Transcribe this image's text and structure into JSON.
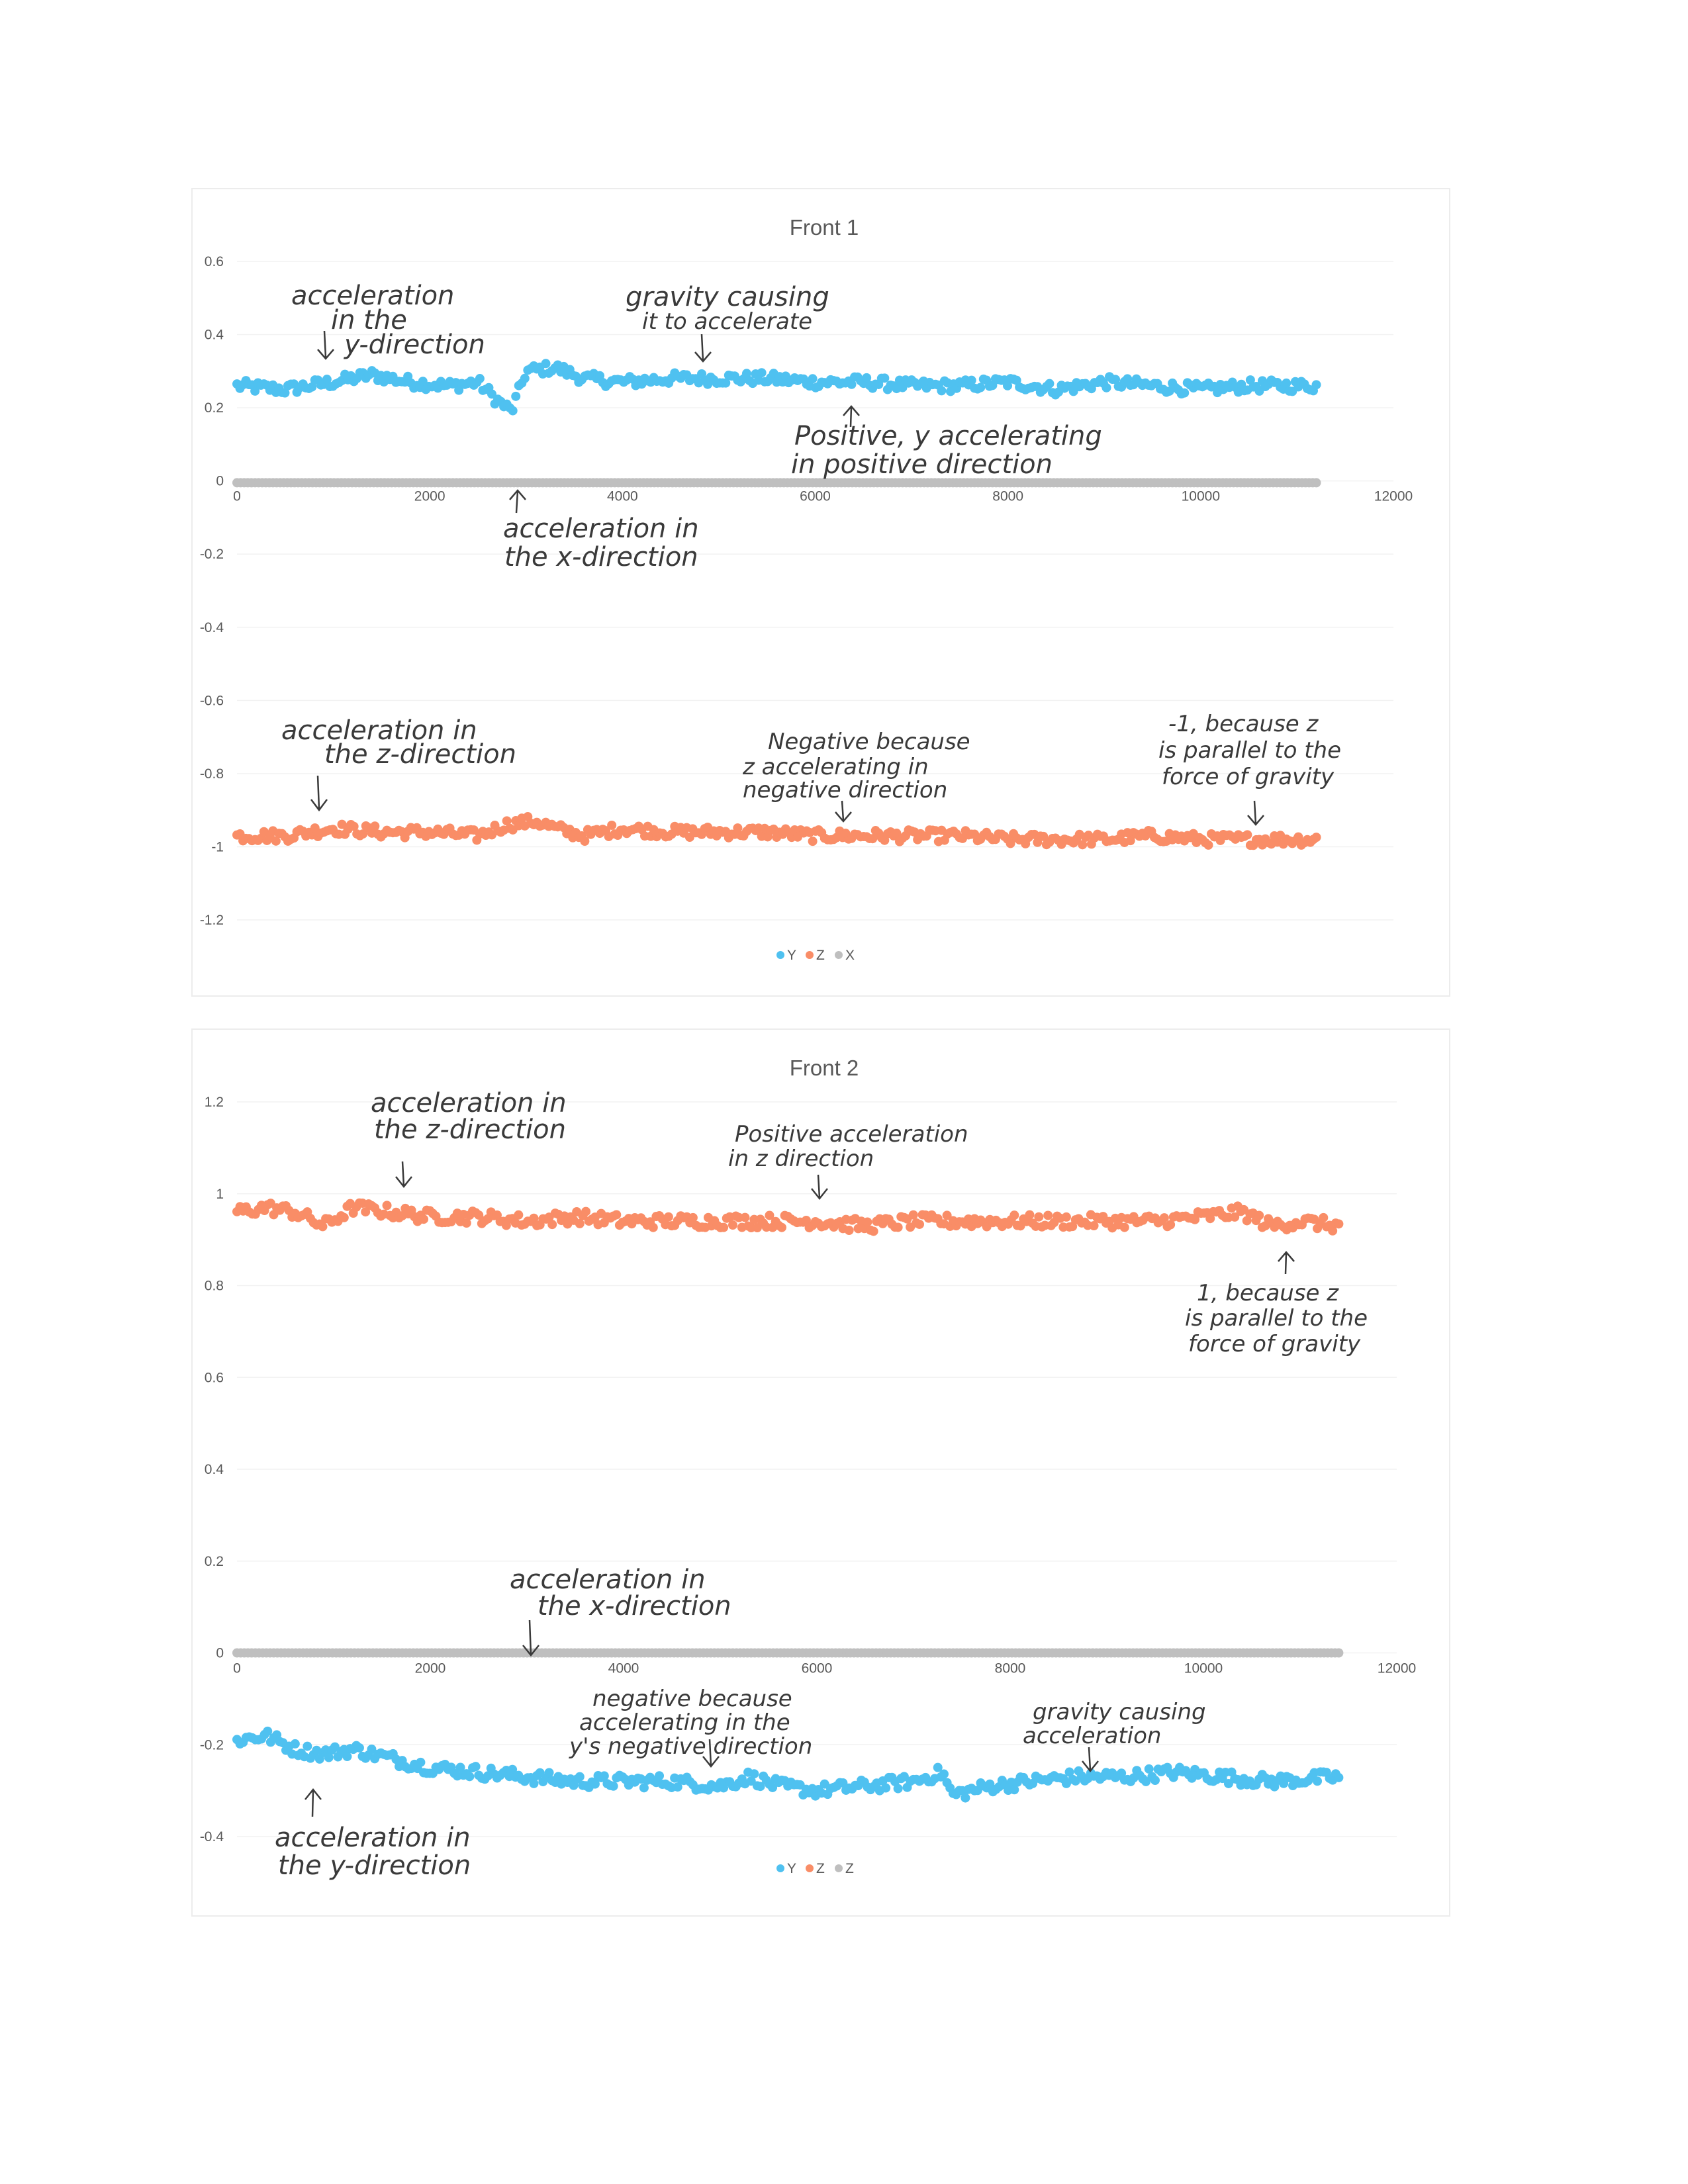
{
  "colors": {
    "Y": "#4fc1f0",
    "Z": "#f98d67",
    "X": "#bfbfbf"
  },
  "chart_data": [
    {
      "type": "scatter",
      "title": "Front 1",
      "xlim": [
        0,
        12000
      ],
      "ylim": [
        -1.2,
        0.6
      ],
      "x_ticks": [
        "0",
        "2000",
        "4000",
        "6000",
        "8000",
        "10000",
        "12000"
      ],
      "y_ticks": [
        "-1.2",
        "-1",
        "-0.8",
        "-0.6",
        "-0.4",
        "-0.2",
        "0",
        "0.2",
        "0.4",
        "0.6"
      ],
      "legend_position": "bottom",
      "series": [
        {
          "name": "Y",
          "color_key": "Y",
          "x_max": 11200,
          "points": [
            [
              0,
              0.26
            ],
            [
              500,
              0.25
            ],
            [
              1000,
              0.27
            ],
            [
              1400,
              0.29
            ],
            [
              1800,
              0.27
            ],
            [
              2200,
              0.26
            ],
            [
              2500,
              0.27
            ],
            [
              2700,
              0.22
            ],
            [
              2850,
              0.19
            ],
            [
              3000,
              0.3
            ],
            [
              3300,
              0.31
            ],
            [
              3600,
              0.28
            ],
            [
              4000,
              0.27
            ],
            [
              4500,
              0.28
            ],
            [
              5000,
              0.28
            ],
            [
              5500,
              0.28
            ],
            [
              6000,
              0.27
            ],
            [
              6500,
              0.27
            ],
            [
              7000,
              0.26
            ],
            [
              7500,
              0.26
            ],
            [
              8000,
              0.27
            ],
            [
              8500,
              0.25
            ],
            [
              9000,
              0.27
            ],
            [
              9500,
              0.26
            ],
            [
              10000,
              0.25
            ],
            [
              10500,
              0.26
            ],
            [
              11200,
              0.26
            ]
          ]
        },
        {
          "name": "Z",
          "color_key": "Z",
          "x_max": 11200,
          "points": [
            [
              0,
              -0.97
            ],
            [
              500,
              -0.97
            ],
            [
              1000,
              -0.95
            ],
            [
              1500,
              -0.96
            ],
            [
              2000,
              -0.96
            ],
            [
              2500,
              -0.97
            ],
            [
              2800,
              -0.94
            ],
            [
              3100,
              -0.93
            ],
            [
              3300,
              -0.95
            ],
            [
              3600,
              -0.97
            ],
            [
              4000,
              -0.95
            ],
            [
              4500,
              -0.96
            ],
            [
              5000,
              -0.96
            ],
            [
              5500,
              -0.96
            ],
            [
              6000,
              -0.97
            ],
            [
              6500,
              -0.97
            ],
            [
              7000,
              -0.97
            ],
            [
              7500,
              -0.97
            ],
            [
              8000,
              -0.98
            ],
            [
              8500,
              -0.98
            ],
            [
              9000,
              -0.98
            ],
            [
              9500,
              -0.97
            ],
            [
              10000,
              -0.98
            ],
            [
              10500,
              -0.98
            ],
            [
              11200,
              -0.98
            ]
          ]
        },
        {
          "name": "X",
          "color_key": "X",
          "x_max": 11200,
          "points": [
            [
              0,
              -0.005
            ],
            [
              11200,
              -0.005
            ]
          ]
        }
      ]
    },
    {
      "type": "scatter",
      "title": "Front 2",
      "xlim": [
        0,
        12000
      ],
      "ylim": [
        -0.4,
        1.2
      ],
      "x_ticks": [
        "0",
        "2000",
        "4000",
        "6000",
        "8000",
        "10000",
        "12000"
      ],
      "y_ticks": [
        "-0.4",
        "-0.2",
        "0",
        "0.2",
        "0.4",
        "0.6",
        "0.8",
        "1",
        "1.2"
      ],
      "legend_position": "bottom",
      "series": [
        {
          "name": "Y",
          "color_key": "Y",
          "x_max": 11400,
          "points": [
            [
              0,
              -0.19
            ],
            [
              300,
              -0.18
            ],
            [
              600,
              -0.21
            ],
            [
              900,
              -0.22
            ],
            [
              1200,
              -0.21
            ],
            [
              1600,
              -0.23
            ],
            [
              2000,
              -0.25
            ],
            [
              2500,
              -0.26
            ],
            [
              3000,
              -0.27
            ],
            [
              3500,
              -0.28
            ],
            [
              4000,
              -0.28
            ],
            [
              4500,
              -0.28
            ],
            [
              5000,
              -0.29
            ],
            [
              5300,
              -0.27
            ],
            [
              5600,
              -0.29
            ],
            [
              6000,
              -0.3
            ],
            [
              6500,
              -0.29
            ],
            [
              7000,
              -0.28
            ],
            [
              7300,
              -0.26
            ],
            [
              7400,
              -0.31
            ],
            [
              7800,
              -0.29
            ],
            [
              8200,
              -0.28
            ],
            [
              8700,
              -0.27
            ],
            [
              9200,
              -0.27
            ],
            [
              9700,
              -0.26
            ],
            [
              10200,
              -0.27
            ],
            [
              10700,
              -0.28
            ],
            [
              11400,
              -0.27
            ]
          ]
        },
        {
          "name": "Z",
          "color_key": "Z",
          "x_max": 11400,
          "points": [
            [
              0,
              0.96
            ],
            [
              300,
              0.97
            ],
            [
              600,
              0.96
            ],
            [
              900,
              0.93
            ],
            [
              1200,
              0.97
            ],
            [
              1600,
              0.96
            ],
            [
              2000,
              0.95
            ],
            [
              2500,
              0.95
            ],
            [
              3000,
              0.94
            ],
            [
              3500,
              0.95
            ],
            [
              4000,
              0.94
            ],
            [
              4500,
              0.94
            ],
            [
              5000,
              0.94
            ],
            [
              5500,
              0.94
            ],
            [
              6000,
              0.94
            ],
            [
              6500,
              0.93
            ],
            [
              7000,
              0.94
            ],
            [
              7500,
              0.94
            ],
            [
              8000,
              0.94
            ],
            [
              8500,
              0.94
            ],
            [
              9000,
              0.94
            ],
            [
              9500,
              0.94
            ],
            [
              10000,
              0.95
            ],
            [
              10400,
              0.96
            ],
            [
              10700,
              0.93
            ],
            [
              11000,
              0.94
            ],
            [
              11400,
              0.93
            ]
          ]
        },
        {
          "name": "Z",
          "color_key": "X",
          "x_max": 11400,
          "points": [
            [
              0,
              0.0
            ],
            [
              11400,
              0.0
            ]
          ]
        }
      ]
    }
  ],
  "annotations": {
    "chart1": {
      "y_dir": [
        "acceleration",
        "in the",
        "y-direction"
      ],
      "gravity": [
        "gravity causing",
        "it to accelerate"
      ],
      "positive_y": [
        "Positive, y accelerating",
        "in positive direction"
      ],
      "x_dir": [
        "acceleration in",
        "the x-direction"
      ],
      "z_dir": [
        "acceleration in",
        "the z-direction"
      ],
      "negative_z": [
        "Negative because",
        "z accelerating in",
        "negative direction"
      ],
      "minus_one": [
        "-1, because z",
        "is parallel to the",
        "force of gravity"
      ]
    },
    "chart2": {
      "z_dir": [
        "acceleration in",
        "the z-direction"
      ],
      "positive_z": [
        "Positive acceleration",
        "in z direction"
      ],
      "one": [
        "1, because z",
        "is parallel to the",
        "force of gravity"
      ],
      "x_dir": [
        "acceleration in",
        "the x-direction"
      ],
      "negative_y": [
        "negative because",
        "accelerating in the",
        "y's negative direction"
      ],
      "gravity": [
        "gravity causing",
        "acceleration"
      ],
      "y_dir": [
        "acceleration in",
        "the y-direction"
      ]
    }
  }
}
